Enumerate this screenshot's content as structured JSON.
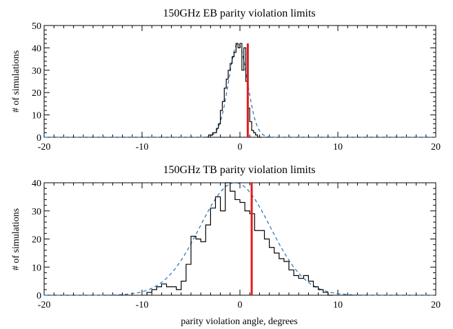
{
  "chart_data": [
    {
      "type": "histogram",
      "title": "150GHz EB parity violation limits",
      "ylabel": "# of simulations",
      "xlabel": "",
      "xlim": [
        -20,
        20
      ],
      "ylim": [
        0,
        50
      ],
      "xticks": [
        -20,
        -10,
        0,
        10,
        20
      ],
      "yticks": [
        0,
        10,
        20,
        30,
        40,
        50
      ],
      "grid": false,
      "colors": {
        "histogram": "#000000",
        "gaussian": "#1f6fb5",
        "limit": "#e41a1c"
      },
      "histogram": {
        "bin_edges": [
          -3.2,
          -2.8,
          -2.4,
          -2.2,
          -2.0,
          -1.8,
          -1.6,
          -1.4,
          -1.2,
          -1.0,
          -0.8,
          -0.6,
          -0.4,
          -0.2,
          0.0,
          0.2,
          0.4,
          0.6,
          0.8,
          1.0,
          1.2,
          1.4,
          1.6,
          1.8,
          2.0,
          2.2
        ],
        "counts": [
          1,
          2,
          4,
          6,
          12,
          16,
          22,
          26,
          30,
          33,
          36,
          38,
          42,
          40,
          42,
          30,
          40,
          25,
          13,
          7,
          3,
          2,
          1,
          0,
          0
        ]
      },
      "gaussian": {
        "amplitude": 42,
        "mean": -0.2,
        "sigma": 0.95
      },
      "limit_line": {
        "x": 0.8,
        "y_top": 42
      }
    },
    {
      "type": "histogram",
      "title": "150GHz TB parity violation limits",
      "ylabel": "# of simulations",
      "xlabel": "parity violation angle, degrees",
      "xlim": [
        -20,
        20
      ],
      "ylim": [
        0,
        40
      ],
      "xticks": [
        -20,
        -10,
        0,
        10,
        20
      ],
      "yticks": [
        0,
        10,
        20,
        30,
        40
      ],
      "grid": false,
      "colors": {
        "histogram": "#000000",
        "gaussian": "#1f6fb5",
        "limit": "#e41a1c"
      },
      "histogram": {
        "bin_edges": [
          -9.5,
          -9.0,
          -8.5,
          -8.0,
          -7.5,
          -7.0,
          -6.5,
          -6.0,
          -5.5,
          -5.0,
          -4.5,
          -4.0,
          -3.5,
          -3.0,
          -2.5,
          -2.0,
          -1.5,
          -1.0,
          -0.5,
          0.0,
          0.5,
          1.0,
          1.5,
          2.0,
          2.5,
          3.0,
          3.5,
          4.0,
          4.5,
          5.0,
          5.5,
          6.0,
          6.5,
          7.0,
          7.5,
          8.0,
          8.5,
          9.0,
          9.5
        ],
        "counts": [
          1,
          2,
          3,
          4,
          3,
          3,
          2,
          5,
          11,
          21,
          20,
          19,
          25,
          31,
          35,
          30,
          40,
          37,
          34,
          33,
          30,
          29,
          23,
          23,
          20,
          17,
          15,
          13,
          12,
          9,
          7,
          6,
          7,
          5,
          3,
          2,
          1,
          0
        ]
      },
      "gaussian": {
        "amplitude": 40,
        "mean": -0.5,
        "sigma": 3.6
      },
      "limit_line": {
        "x": 1.2,
        "y_top": 40
      }
    }
  ]
}
